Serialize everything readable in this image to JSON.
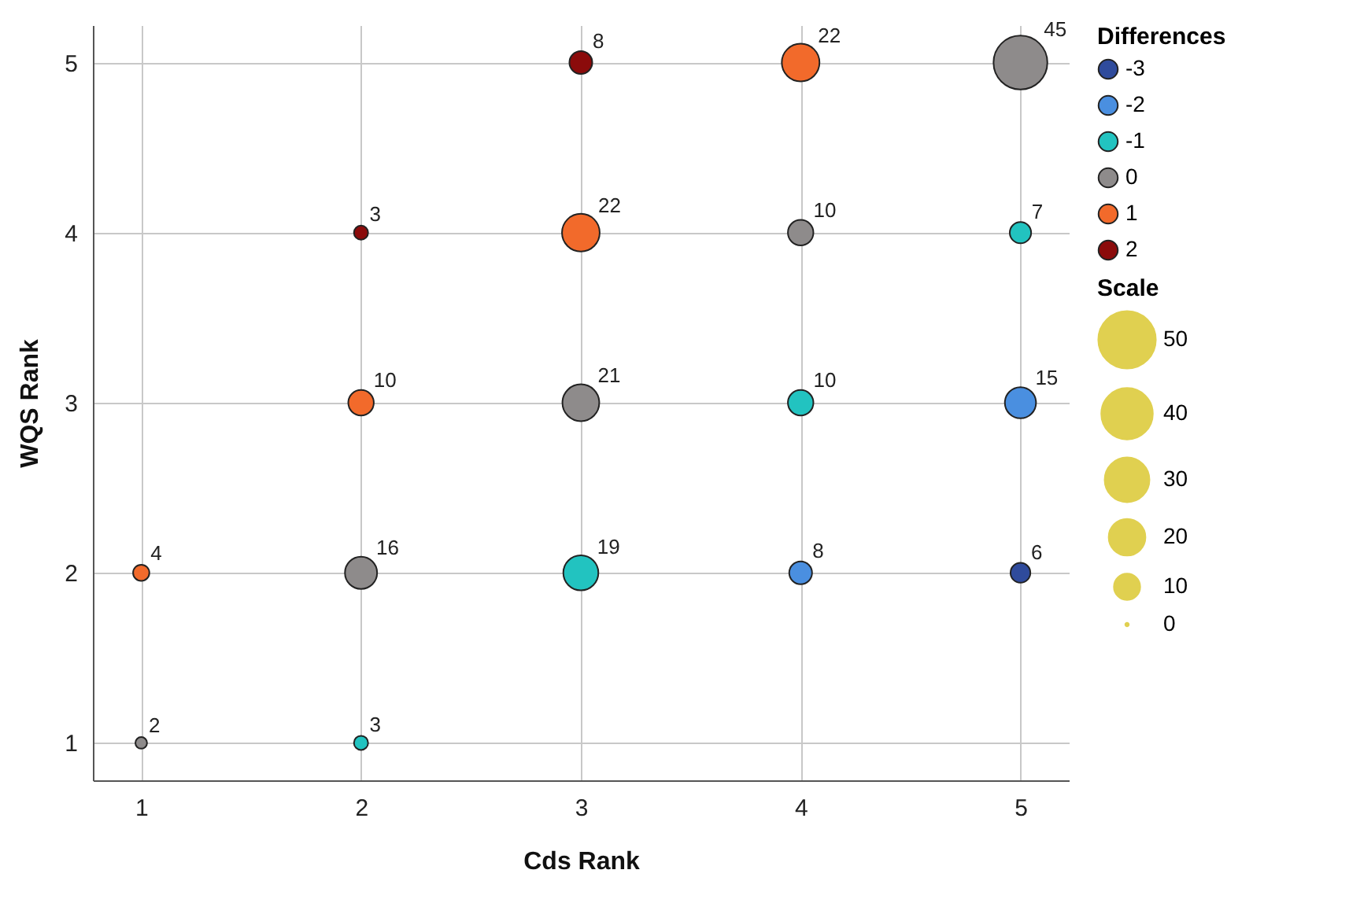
{
  "chart_data": {
    "type": "bubble",
    "xlabel": "Cds Rank",
    "ylabel": "WQS Rank",
    "legend_title": "Differences",
    "legend": "right",
    "xlim": [
      0.78,
      5.22
    ],
    "ylim": [
      0.78,
      5.22
    ],
    "xticks": [
      1,
      2,
      3,
      4,
      5
    ],
    "yticks": [
      1,
      2,
      3,
      4,
      5
    ],
    "grid": true,
    "size_legend": [
      50,
      40,
      30,
      20,
      10,
      0
    ],
    "annotations": [
      "Scale"
    ],
    "series": [
      {
        "name": "-3",
        "color": "#2f4b9c",
        "x": [
          5
        ],
        "values": [
          2
        ],
        "sizes": [
          6
        ],
        "value_labels": [
          "6"
        ]
      },
      {
        "name": "-2",
        "color": "#4a8fe0",
        "x": [
          4,
          5
        ],
        "values": [
          2,
          3
        ],
        "sizes": [
          8,
          15
        ],
        "value_labels": [
          "8",
          "15"
        ]
      },
      {
        "name": "-1",
        "color": "#22c3c0",
        "x": [
          2,
          3,
          4,
          5
        ],
        "values": [
          1,
          2,
          3,
          4
        ],
        "sizes": [
          3,
          19,
          10,
          7
        ],
        "value_labels": [
          "3",
          "19",
          "10",
          "7"
        ]
      },
      {
        "name": "0",
        "color": "#8e8b8b",
        "x": [
          1,
          2,
          3,
          4,
          5
        ],
        "values": [
          1,
          2,
          3,
          4,
          5
        ],
        "sizes": [
          2,
          16,
          21,
          10,
          45
        ],
        "value_labels": [
          "2",
          "16",
          "21",
          "10",
          "45"
        ]
      },
      {
        "name": "1",
        "color": "#f26a2b",
        "x": [
          1,
          2,
          3,
          4
        ],
        "values": [
          2,
          3,
          4,
          5
        ],
        "sizes": [
          4,
          10,
          22,
          22
        ],
        "value_labels": [
          "4",
          "10",
          "22",
          "22"
        ]
      },
      {
        "name": "2",
        "color": "#8b0b0b",
        "x": [
          2,
          3
        ],
        "values": [
          4,
          5
        ],
        "sizes": [
          3,
          8
        ],
        "value_labels": [
          "3",
          "8"
        ]
      }
    ]
  }
}
